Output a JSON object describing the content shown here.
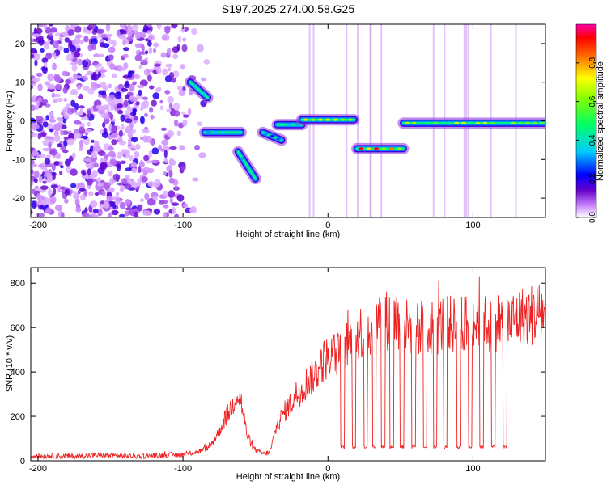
{
  "title": "S197.2025.274.00.58.G25",
  "colors": {
    "snr_line": "#ee2222",
    "axis": "#000000",
    "background": "#ffffff"
  },
  "chart_data": [
    {
      "type": "heatmap",
      "name": "spectrogram",
      "xlabel": "Height of straight line (km)",
      "ylabel": "Frequency (Hz)",
      "xlim": [
        -205,
        150
      ],
      "ylim": [
        -25,
        25
      ],
      "xticks": [
        -200,
        -100,
        0,
        100
      ],
      "yticks": [
        -20,
        -10,
        0,
        10,
        20
      ],
      "colorbar": {
        "label": "Normalized spectral amplitude",
        "range": [
          0,
          1
        ],
        "ticks": [
          0.0,
          0.2,
          0.4,
          0.6,
          0.8
        ]
      },
      "segments": [
        {
          "x": [
            -95,
            -83
          ],
          "f": [
            10,
            6
          ],
          "peak": 0.5
        },
        {
          "x": [
            -85,
            -60
          ],
          "f": [
            -3,
            -3
          ],
          "peak": 0.45
        },
        {
          "x": [
            -62,
            -50
          ],
          "f": [
            -8,
            -15
          ],
          "peak": 0.45
        },
        {
          "x": [
            -45,
            -32
          ],
          "f": [
            -3,
            -5
          ],
          "peak": 0.35
        },
        {
          "x": [
            -35,
            -18
          ],
          "f": [
            -1,
            -1
          ],
          "peak": 0.45
        },
        {
          "x": [
            -18,
            18
          ],
          "f": [
            0.3,
            0.3
          ],
          "peak": 0.85
        },
        {
          "x": [
            20,
            52
          ],
          "f": [
            -7.2,
            -7.2
          ],
          "peak": 0.95
        },
        {
          "x": [
            52,
            150
          ],
          "f": [
            -0.6,
            -0.6
          ],
          "peak": 0.7
        }
      ]
    },
    {
      "type": "line",
      "name": "snr",
      "xlabel": "Height of straight line (km)",
      "ylabel": "SNR (10 * v/v)",
      "xlim": [
        -205,
        150
      ],
      "ylim": [
        0,
        870
      ],
      "xticks": [
        -200,
        -100,
        0,
        100
      ],
      "yticks": [
        0,
        200,
        400,
        600,
        800
      ],
      "series": [
        {
          "name": "SNR",
          "x": [
            -205,
            -190,
            -175,
            -160,
            -145,
            -130,
            -115,
            -100,
            -90,
            -82,
            -78,
            -74,
            -70,
            -66,
            -63,
            -60,
            -56,
            -52,
            -48,
            -44,
            -40,
            -36,
            -32,
            -28,
            -25,
            -22,
            -18,
            -14,
            -10,
            -6,
            -2,
            2,
            6,
            10,
            14,
            18,
            22,
            26,
            30,
            34,
            38,
            42,
            46,
            50,
            55,
            60,
            65,
            70,
            75,
            80,
            85,
            90,
            95,
            100,
            104,
            106,
            108,
            112,
            118,
            124,
            130,
            136,
            142,
            150
          ],
          "values": [
            20,
            22,
            20,
            25,
            22,
            20,
            25,
            28,
            40,
            60,
            100,
            150,
            200,
            250,
            300,
            270,
            120,
            60,
            40,
            30,
            40,
            140,
            200,
            240,
            260,
            300,
            320,
            360,
            380,
            420,
            460,
            470,
            480,
            500,
            530,
            560,
            580,
            590,
            600,
            620,
            640,
            630,
            650,
            620,
            600,
            610,
            600,
            610,
            600,
            620,
            610,
            600,
            620,
            630,
            640,
            860,
            620,
            610,
            630,
            620,
            640,
            650,
            660,
            680
          ]
        }
      ],
      "dropouts_x": [
        10,
        18,
        26,
        32,
        38,
        44,
        51,
        59,
        67,
        74,
        81,
        90,
        98,
        106,
        114,
        122
      ]
    }
  ]
}
